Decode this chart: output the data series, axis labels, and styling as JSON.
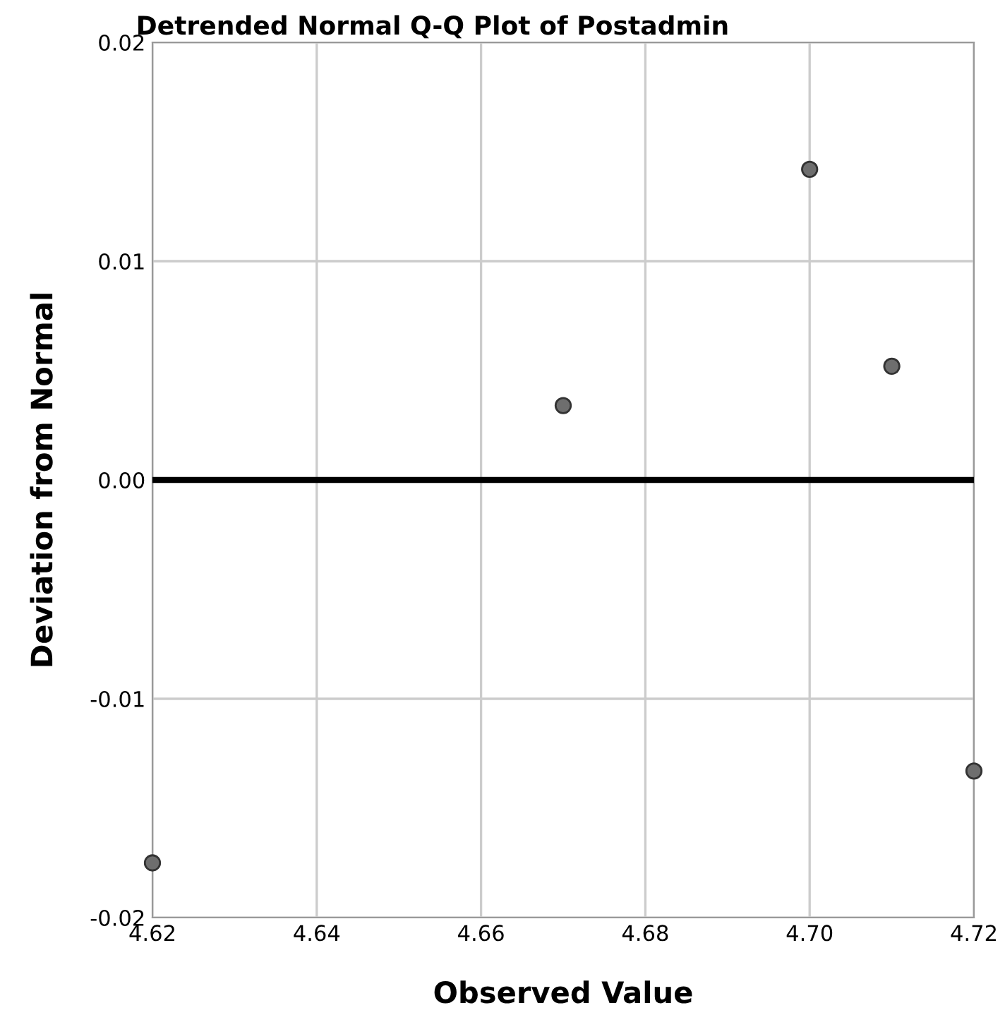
{
  "chart_data": {
    "type": "scatter",
    "title": "Detrended Normal Q-Q Plot of Postadmin",
    "xlabel": "Observed Value",
    "ylabel": "Deviation from Normal",
    "x": [
      4.62,
      4.67,
      4.7,
      4.71,
      4.72
    ],
    "series": [
      {
        "color": "#6e6e6e",
        "values": [
          -0.0175,
          0.0034,
          0.0142,
          0.0052,
          -0.0133
        ]
      }
    ],
    "xlim": [
      4.62,
      4.72
    ],
    "xticks": [
      {
        "value": 4.62,
        "label": "4.62"
      },
      {
        "value": 4.64,
        "label": "4.64"
      },
      {
        "value": 4.66,
        "label": "4.66"
      },
      {
        "value": 4.68,
        "label": "4.68"
      },
      {
        "value": 4.7,
        "label": "4.70"
      },
      {
        "value": 4.72,
        "label": "4.72"
      }
    ],
    "ylim": [
      -0.02,
      0.02
    ],
    "yticks": [
      {
        "value": -0.02,
        "label": "-0.02"
      },
      {
        "value": -0.01,
        "label": "-0.01"
      },
      {
        "value": 0,
        "label": "0.00"
      },
      {
        "value": 0.01,
        "label": "0.01"
      },
      {
        "value": 0.02,
        "label": "0.02"
      }
    ],
    "ref_lines": [
      {
        "axis": "y",
        "value": 0,
        "color": "#000000"
      }
    ],
    "grid": true,
    "marker": "circle"
  }
}
